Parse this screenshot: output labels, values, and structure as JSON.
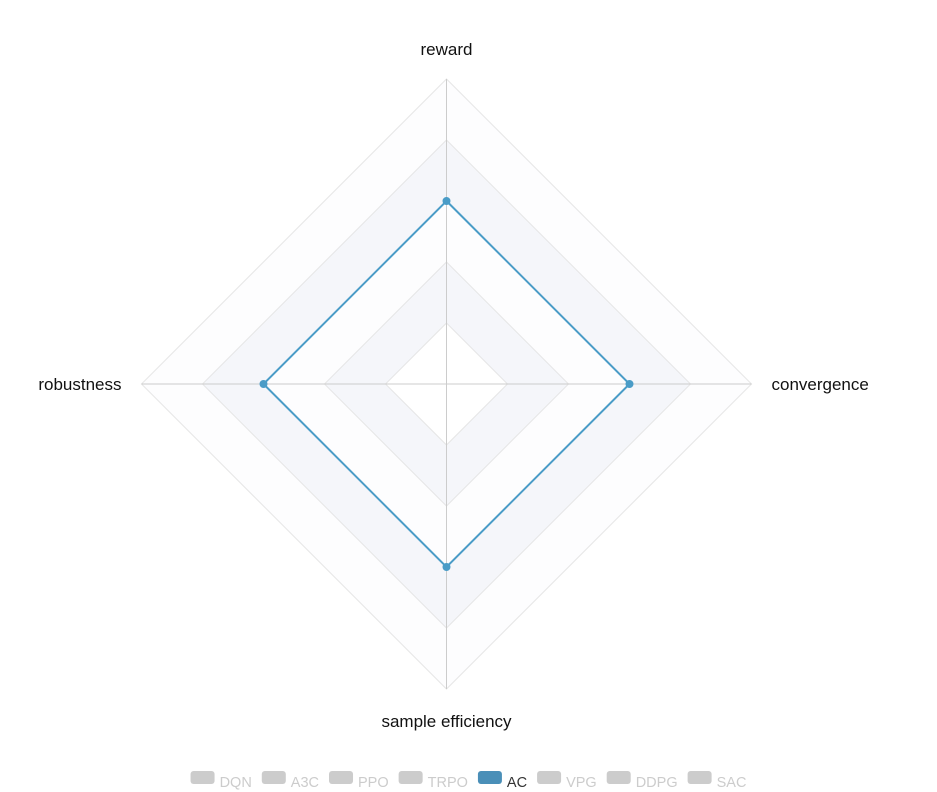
{
  "chart_data": {
    "type": "radar",
    "indicators": [
      {
        "name": "reward",
        "max": 100
      },
      {
        "name": "convergence",
        "max": 100
      },
      {
        "name": "sample efficiency",
        "max": 100
      },
      {
        "name": "robustness",
        "max": 100
      }
    ],
    "split_number": 5,
    "legend_position": "bottom-center",
    "series": [
      {
        "name": "DQN",
        "visible": false,
        "color": "#cccccc",
        "values": []
      },
      {
        "name": "A3C",
        "visible": false,
        "color": "#cccccc",
        "values": []
      },
      {
        "name": "PPO",
        "visible": false,
        "color": "#cccccc",
        "values": []
      },
      {
        "name": "TRPO",
        "visible": false,
        "color": "#cccccc",
        "values": []
      },
      {
        "name": "AC",
        "visible": true,
        "color": "#4a9cc7",
        "values": [
          60,
          60,
          60,
          60
        ]
      },
      {
        "name": "VPG",
        "visible": false,
        "color": "#cccccc",
        "values": []
      },
      {
        "name": "DDPG",
        "visible": false,
        "color": "#cccccc",
        "values": []
      },
      {
        "name": "SAC",
        "visible": false,
        "color": "#cccccc",
        "values": []
      }
    ],
    "colors": {
      "active_legend_swatch": "#4a8fb8",
      "inactive": "#cccccc",
      "axis_line": "#cccccc",
      "split_line": "#e6e6e6",
      "band_light": "#fdfdfe",
      "band_dark": "#f5f6fa"
    }
  }
}
